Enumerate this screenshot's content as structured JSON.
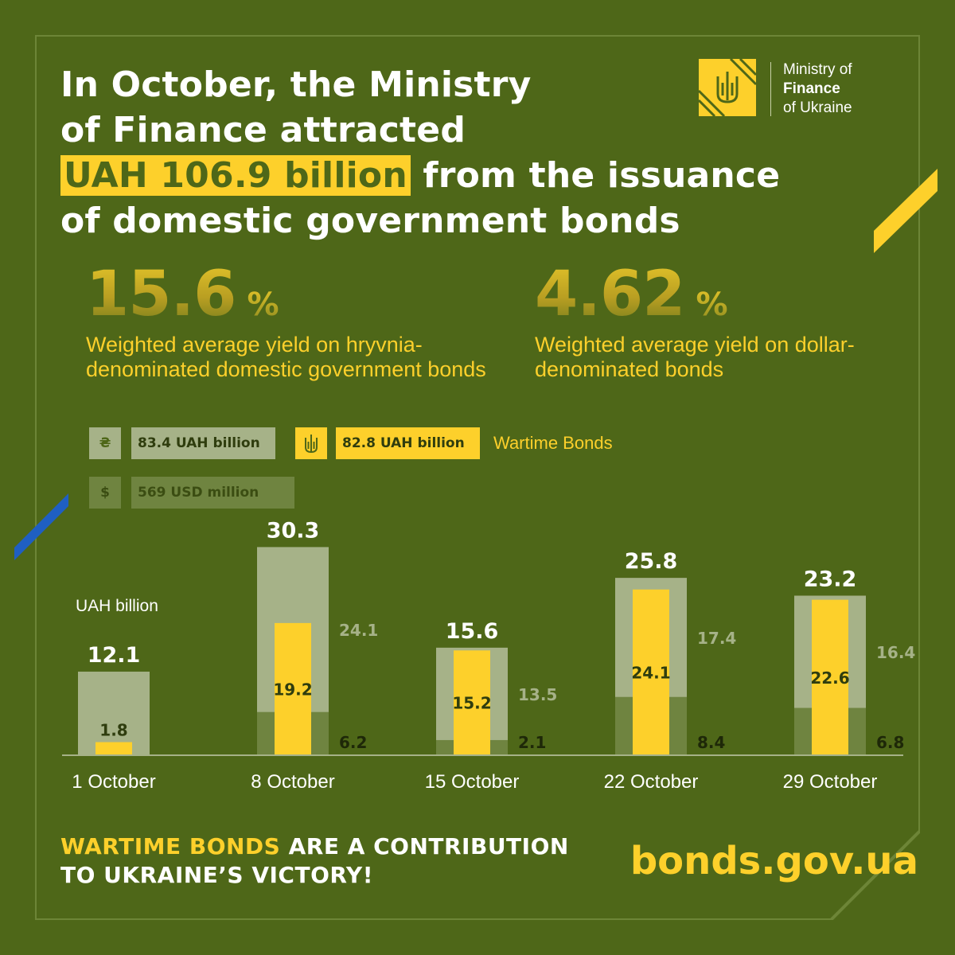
{
  "colors": {
    "background": "#4e6718",
    "accent_yellow": "#fdd02b",
    "uah_bar": "#a6b288",
    "usd_bar": "#6f8440",
    "frame": "#6d8537",
    "blue_accent": "#1f5fc2"
  },
  "headline": {
    "line1": "In October, the Ministry",
    "line2": "of Finance attracted",
    "highlight": "UAH 106.9 billion",
    "line3_rest": " from the issuance",
    "line4": "of domestic government bonds"
  },
  "logo": {
    "line1": "Ministry of",
    "line2": "Finance",
    "line3": "of Ukraine",
    "icon": "trident-icon"
  },
  "stats": [
    {
      "value": "15.6",
      "unit": "%",
      "description": "Weighted average yield on hryvnia-denominated domestic government bonds"
    },
    {
      "value": "4.62",
      "unit": "%",
      "description": "Weighted average yield on dollar-denominated bonds"
    }
  ],
  "legend": {
    "uah": {
      "symbol": "₴",
      "label": "83.4 UAH billion"
    },
    "wartime": {
      "icon": "trident-icon",
      "label": "82.8 UAH billion",
      "name": "Wartime Bonds"
    },
    "usd": {
      "symbol": "$",
      "label": "569 USD million"
    }
  },
  "chart_data": {
    "type": "bar",
    "unit_label": "UAH billion",
    "categories": [
      "1 October",
      "8 October",
      "15 October",
      "22 October",
      "29 October"
    ],
    "totals": [
      12.1,
      30.3,
      15.6,
      25.8,
      23.2
    ],
    "series": [
      {
        "name": "UAH",
        "values": [
          null,
          24.1,
          13.5,
          17.4,
          16.4
        ]
      },
      {
        "name": "USD",
        "values": [
          null,
          6.2,
          2.1,
          8.4,
          6.8
        ]
      },
      {
        "name": "Wartime Bonds",
        "values": [
          1.8,
          19.2,
          15.2,
          24.1,
          22.6
        ]
      }
    ]
  },
  "footer": {
    "highlight": "WARTIME BONDS",
    "line1_rest": " ARE A CONTRIBUTION",
    "line2": "TO UKRAINE’S VICTORY!",
    "website": "bonds.gov.ua"
  }
}
